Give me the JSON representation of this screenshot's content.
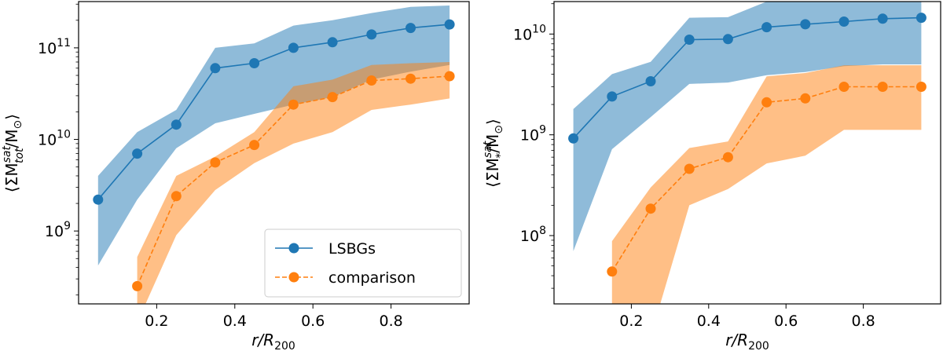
{
  "chart_data": [
    {
      "type": "line",
      "panel": "left",
      "title": "",
      "xlabel": "r/R200",
      "xlabel_parts": {
        "base": "r/R",
        "sub": "200"
      },
      "ylabel": "⟨ΣM_tot^sat/M⊙⟩",
      "ylabel_parts": {
        "open": "⟨ΣM",
        "sup": "sat",
        "sub": "tot",
        "rest": "/M",
        "sun": "⊙",
        "close": "⟩"
      },
      "yscale": "log",
      "xlim": [
        0.0,
        1.0
      ],
      "ylim": [
        160000000.0,
        320000000000.0
      ],
      "x_ticks": [
        0.2,
        0.4,
        0.6,
        0.8
      ],
      "x_tick_labels": [
        "0.2",
        "0.4",
        "0.6",
        "0.8"
      ],
      "y_ticks": [
        1000000000.0,
        10000000000.0,
        100000000000.0
      ],
      "y_tick_labels": [
        {
          "base": "10",
          "exp": "9"
        },
        {
          "base": "10",
          "exp": "10"
        },
        {
          "base": "10",
          "exp": "11"
        }
      ],
      "x": [
        0.05,
        0.15,
        0.25,
        0.35,
        0.45,
        0.55,
        0.65,
        0.75,
        0.85,
        0.95
      ],
      "series": [
        {
          "name": "LSBGs",
          "color": "#1f77b4",
          "linestyle": "solid",
          "x": [
            0.05,
            0.15,
            0.25,
            0.35,
            0.45,
            0.55,
            0.65,
            0.75,
            0.85,
            0.95
          ],
          "values": [
            2200000000.0,
            7000000000.0,
            14500000000.0,
            60000000000.0,
            68000000000.0,
            100000000000.0,
            115000000000.0,
            140000000000.0,
            165000000000.0,
            180000000000.0
          ],
          "band_low": [
            420000000.0,
            2200000000.0,
            8000000000.0,
            15000000000.0,
            19000000000.0,
            24000000000.0,
            29000000000.0,
            45000000000.0,
            55000000000.0,
            65000000000.0
          ],
          "band_high": [
            4000000000.0,
            12000000000.0,
            21000000000.0,
            100000000000.0,
            112000000000.0,
            175000000000.0,
            200000000000.0,
            240000000000.0,
            280000000000.0,
            290000000000.0
          ]
        },
        {
          "name": "comparison",
          "color": "#ff7f0e",
          "linestyle": "dashed",
          "x": [
            0.15,
            0.25,
            0.35,
            0.45,
            0.55,
            0.65,
            0.75,
            0.85,
            0.95
          ],
          "values": [
            250000000.0,
            2400000000.0,
            5600000000.0,
            8700000000.0,
            24000000000.0,
            29000000000.0,
            44000000000.0,
            46000000000.0,
            49000000000.0
          ],
          "band_low": [
            100000000.0,
            900000000.0,
            2800000000.0,
            5500000000.0,
            9000000000.0,
            12000000000.0,
            21000000000.0,
            24000000000.0,
            28000000000.0
          ],
          "band_high": [
            520000000.0,
            4000000000.0,
            6500000000.0,
            12000000000.0,
            38000000000.0,
            45000000000.0,
            65000000000.0,
            68000000000.0,
            70000000000.0
          ]
        }
      ],
      "legend": {
        "position": "lower-right",
        "entries": [
          "LSBGs",
          "comparison"
        ]
      }
    },
    {
      "type": "line",
      "panel": "right",
      "title": "",
      "xlabel": "r/R200",
      "xlabel_parts": {
        "base": "r/R",
        "sub": "200"
      },
      "ylabel": "⟨ΣM_*^sat/M⊙⟩",
      "ylabel_parts": {
        "open": "⟨ΣM",
        "sup": "sat",
        "sub": "*",
        "rest": "/M",
        "sun": "⊙",
        "close": "⟩"
      },
      "yscale": "log",
      "xlim": [
        0.0,
        1.0
      ],
      "ylim": [
        21000000.0,
        21000000000.0
      ],
      "x_ticks": [
        0.2,
        0.4,
        0.6,
        0.8
      ],
      "x_tick_labels": [
        "0.2",
        "0.4",
        "0.6",
        "0.8"
      ],
      "y_ticks": [
        100000000.0,
        1000000000.0,
        10000000000.0
      ],
      "y_tick_labels": [
        {
          "base": "10",
          "exp": "8"
        },
        {
          "base": "10",
          "exp": "9"
        },
        {
          "base": "10",
          "exp": "10"
        }
      ],
      "x": [
        0.05,
        0.15,
        0.25,
        0.35,
        0.45,
        0.55,
        0.65,
        0.75,
        0.85,
        0.95
      ],
      "series": [
        {
          "name": "LSBGs",
          "color": "#1f77b4",
          "linestyle": "solid",
          "x": [
            0.05,
            0.15,
            0.25,
            0.35,
            0.45,
            0.55,
            0.65,
            0.75,
            0.85,
            0.95
          ],
          "values": [
            920000000.0,
            2400000000.0,
            3400000000.0,
            8800000000.0,
            8900000000.0,
            11700000000.0,
            12500000000.0,
            13300000000.0,
            14200000000.0,
            14500000000.0
          ],
          "band_low": [
            70000000.0,
            720000000.0,
            1500000000.0,
            3200000000.0,
            3300000000.0,
            3900000000.0,
            4200000000.0,
            4800000000.0,
            5000000000.0,
            5000000000.0
          ],
          "band_high": [
            1800000000.0,
            4000000000.0,
            5300000000.0,
            14500000000.0,
            14700000000.0,
            21000000000.0,
            22000000000.0,
            22000000000.0,
            22000000000.0,
            22000000000.0
          ]
        },
        {
          "name": "comparison",
          "color": "#ff7f0e",
          "linestyle": "dashed",
          "x": [
            0.15,
            0.25,
            0.35,
            0.45,
            0.55,
            0.65,
            0.75,
            0.85,
            0.95
          ],
          "values": [
            44000000.0,
            185000000.0,
            460000000.0,
            600000000.0,
            2100000000.0,
            2300000000.0,
            3000000000.0,
            3000000000.0,
            3000000000.0
          ],
          "band_low": [
            10000000.0,
            10000000.0,
            200000000.0,
            290000000.0,
            520000000.0,
            620000000.0,
            1120000000.0,
            1120000000.0,
            1120000000.0
          ],
          "band_high": [
            88000000.0,
            300000000.0,
            740000000.0,
            860000000.0,
            3800000000.0,
            4100000000.0,
            4900000000.0,
            4900000000.0,
            4900000000.0
          ]
        }
      ],
      "legend": null
    }
  ]
}
